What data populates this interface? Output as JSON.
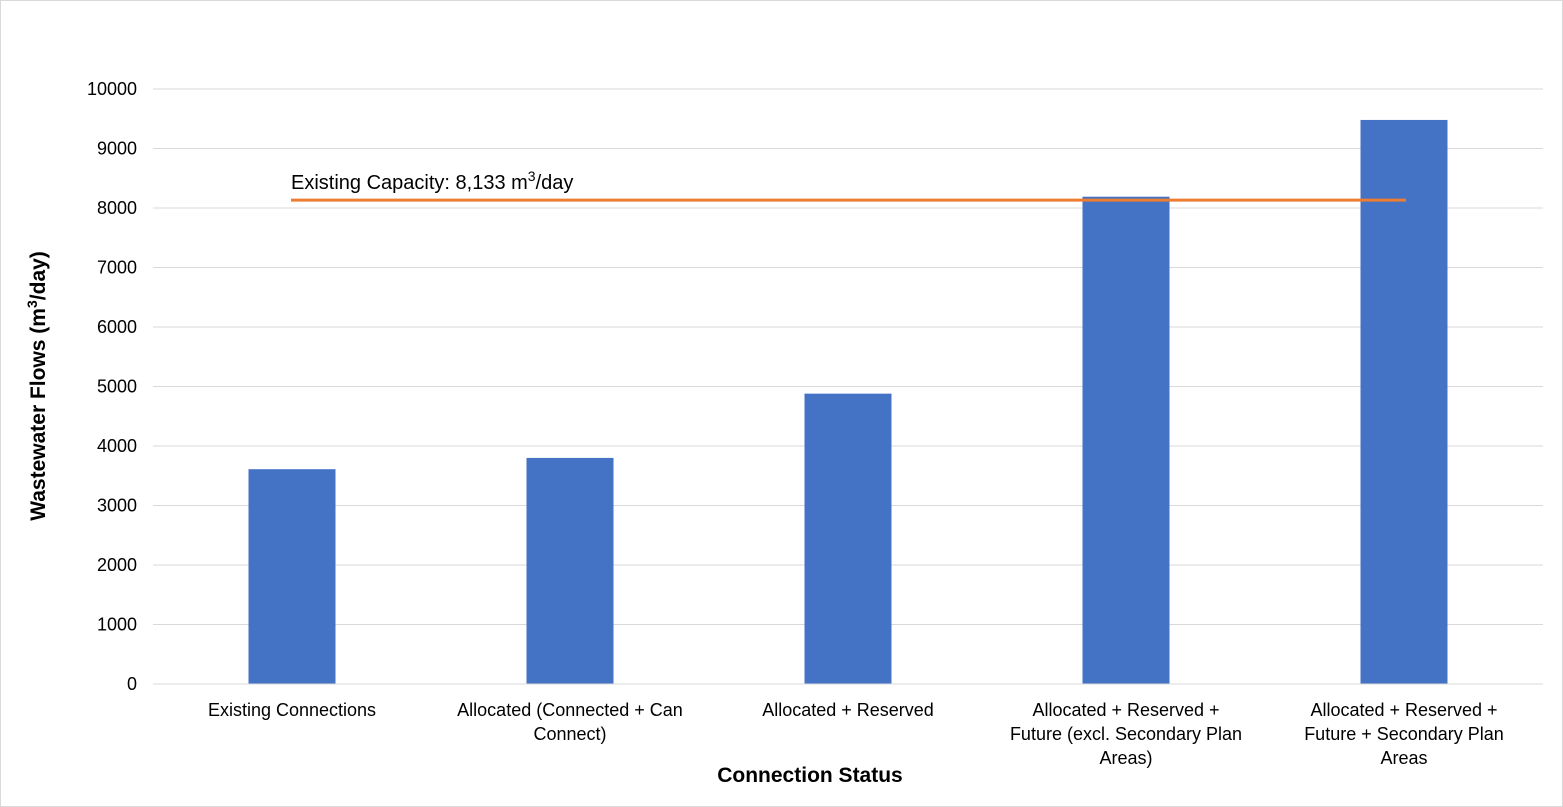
{
  "chart_data": {
    "type": "bar",
    "categories": [
      [
        "Existing Connections"
      ],
      [
        "Allocated (Connected + Can",
        "Connect)"
      ],
      [
        "Allocated + Reserved"
      ],
      [
        "Allocated + Reserved +",
        "Future (excl. Secondary Plan",
        "Areas)"
      ],
      [
        "Allocated + Reserved +",
        "Future + Secondary Plan",
        "Areas"
      ]
    ],
    "values": [
      3610,
      3800,
      4880,
      8190,
      9480
    ],
    "xlabel": "Connection Status",
    "ylabel": {
      "prefix": "Wastewater Flows (m",
      "superscript": "3",
      "suffix": "/day)"
    },
    "ylim": [
      0,
      10000
    ],
    "yticks": [
      0,
      1000,
      2000,
      3000,
      4000,
      5000,
      6000,
      7000,
      8000,
      9000,
      10000
    ],
    "grid": true,
    "bar_color": "#4472C4",
    "reference_line": {
      "value": 8133,
      "color": "#ED7D31",
      "label": {
        "prefix": "Existing Capacity: 8,133 m",
        "superscript": "3",
        "suffix": "/day"
      }
    }
  }
}
